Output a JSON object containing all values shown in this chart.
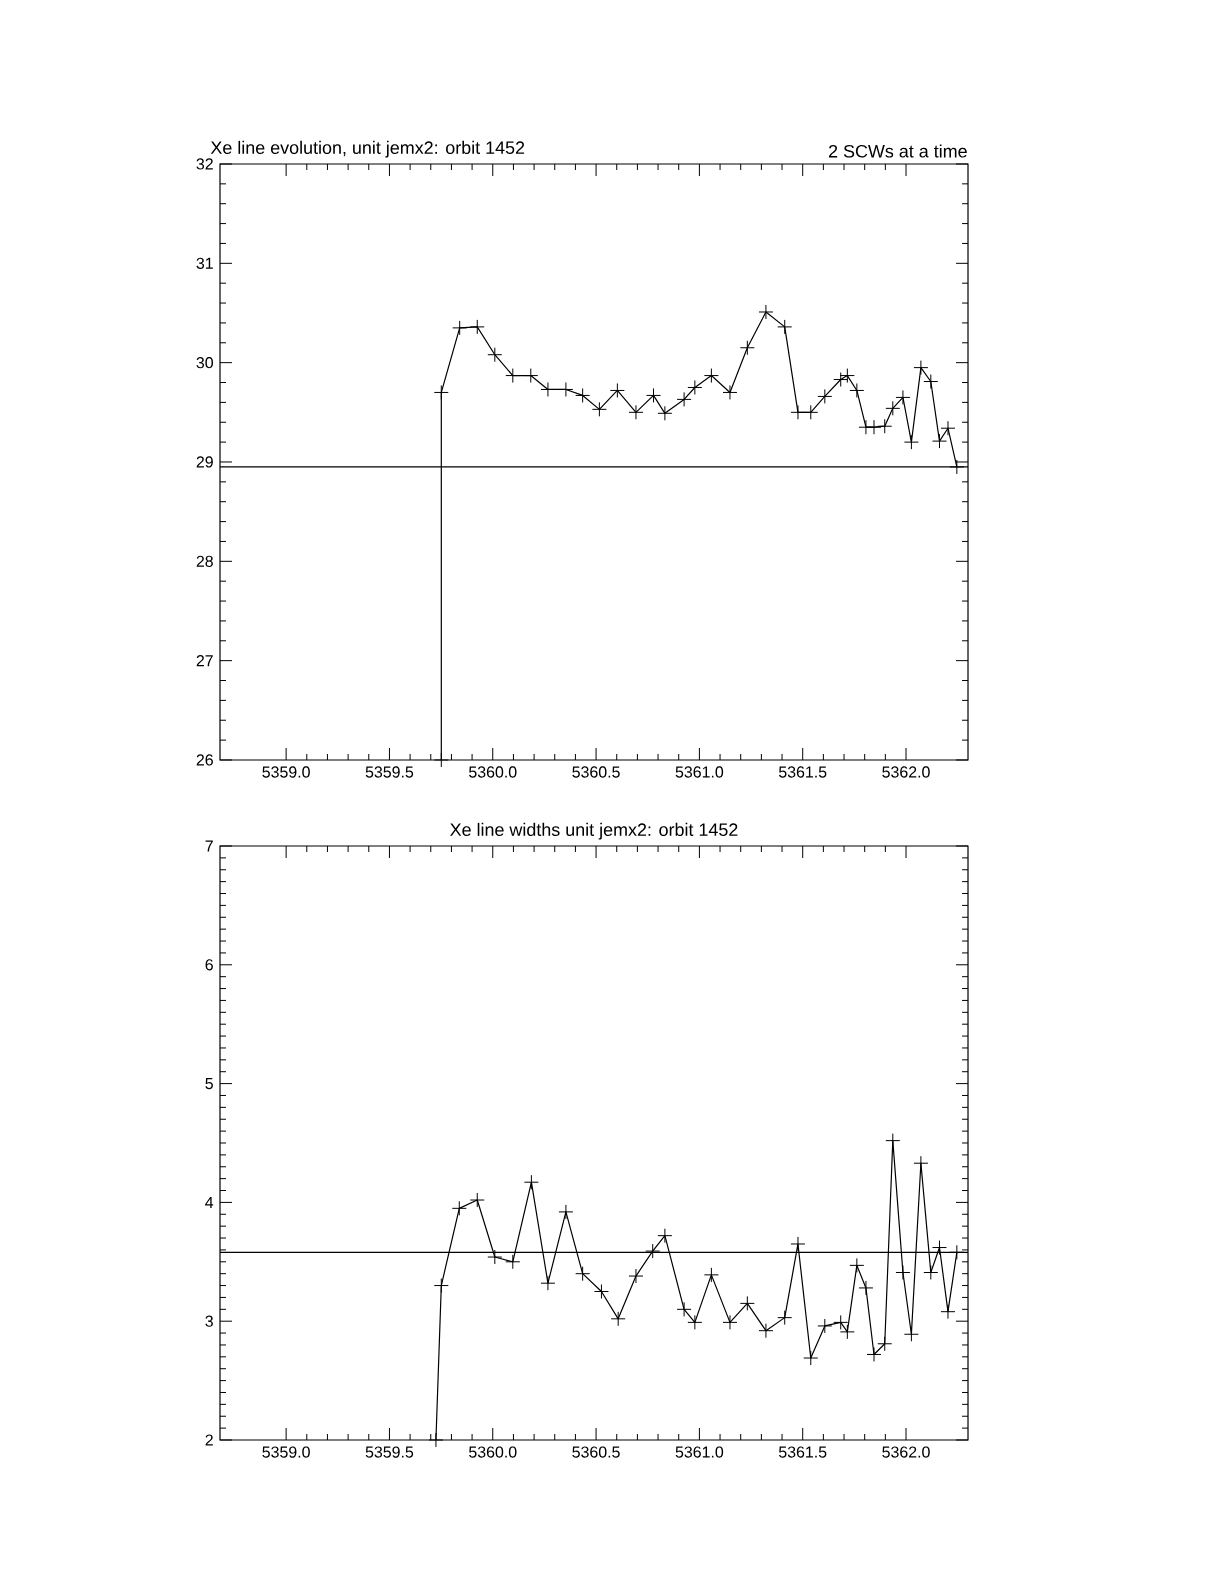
{
  "chart_data": [
    {
      "type": "line",
      "title": "Xe line evolution, unit jemx2: orbit 1452",
      "subtitle": "2 SCWs at a time",
      "x": [
        5359.751,
        5359.751,
        5359.84,
        5359.925,
        5360.01,
        5360.097,
        5360.184,
        5360.267,
        5360.354,
        5360.435,
        5360.516,
        5360.603,
        5360.693,
        5360.778,
        5360.833,
        5360.926,
        5360.978,
        5361.058,
        5361.148,
        5361.232,
        5361.322,
        5361.413,
        5361.477,
        5361.539,
        5361.607,
        5361.684,
        5361.716,
        5361.762,
        5361.806,
        5361.845,
        5361.897,
        5361.936,
        5361.985,
        5362.026,
        5362.072,
        5362.12,
        5362.162,
        5362.203,
        5362.246
      ],
      "series": [
        {
          "color": "#000000",
          "values": [
            26,
            29.7,
            30.35,
            30.36,
            30.08,
            29.87,
            29.87,
            29.73,
            29.73,
            29.67,
            29.53,
            29.72,
            29.5,
            29.67,
            29.49,
            29.63,
            29.75,
            29.87,
            29.7,
            30.15,
            30.51,
            30.36,
            29.5,
            29.5,
            29.66,
            29.83,
            29.87,
            29.72,
            29.35,
            29.35,
            29.36,
            29.54,
            29.65,
            29.2,
            29.95,
            29.81,
            29.21,
            29.34,
            28.95
          ]
        }
      ],
      "xlim": [
        5358.68,
        5362.3
      ],
      "ylim": [
        26,
        32
      ],
      "xticks": [
        {
          "value": 5359,
          "label": "5359.0"
        },
        {
          "value": 5359.5,
          "label": "5359.5"
        },
        {
          "value": 5360,
          "label": "5360.0"
        },
        {
          "value": 5360.5,
          "label": "5360.5"
        },
        {
          "value": 5361,
          "label": "5361.0"
        },
        {
          "value": 5361.5,
          "label": "5361.5"
        },
        {
          "value": 5362,
          "label": "5362.0"
        }
      ],
      "yticks": [
        26,
        27,
        28,
        29,
        30,
        31,
        32
      ],
      "ref_lines": [
        {
          "axis": "y",
          "value": 28.95
        }
      ],
      "marker": "cross"
    },
    {
      "type": "line",
      "title": "Xe line widths unit jemx2: orbit 1452",
      "x": [
        5359.725,
        5359.751,
        5359.838,
        5359.925,
        5360.01,
        5360.097,
        5360.187,
        5360.267,
        5360.354,
        5360.435,
        5360.526,
        5360.607,
        5360.693,
        5360.774,
        5360.833,
        5360.926,
        5360.978,
        5361.058,
        5361.148,
        5361.232,
        5361.322,
        5361.413,
        5361.477,
        5361.539,
        5361.607,
        5361.684,
        5361.716,
        5361.762,
        5361.806,
        5361.845,
        5361.897,
        5361.936,
        5361.985,
        5362.026,
        5362.072,
        5362.12,
        5362.162,
        5362.203,
        5362.246
      ],
      "series": [
        {
          "color": "#000000",
          "values": [
            2,
            3.3,
            3.95,
            4.02,
            3.54,
            3.5,
            4.17,
            3.32,
            3.92,
            3.4,
            3.25,
            3.02,
            3.38,
            3.59,
            3.72,
            3.1,
            2.99,
            3.39,
            2.99,
            3.15,
            2.92,
            3.03,
            3.65,
            2.69,
            2.96,
            2.99,
            2.91,
            3.47,
            3.28,
            2.72,
            2.81,
            4.52,
            3.41,
            2.89,
            4.33,
            3.41,
            3.62,
            3.08,
            3.58
          ]
        }
      ],
      "xlim": [
        5358.68,
        5362.3
      ],
      "ylim": [
        2,
        7
      ],
      "xticks": [
        {
          "value": 5359,
          "label": "5359.0"
        },
        {
          "value": 5359.5,
          "label": "5359.5"
        },
        {
          "value": 5360,
          "label": "5360.0"
        },
        {
          "value": 5360.5,
          "label": "5360.5"
        },
        {
          "value": 5361,
          "label": "5361.0"
        },
        {
          "value": 5361.5,
          "label": "5361.5"
        },
        {
          "value": 5362,
          "label": "5362.0"
        }
      ],
      "yticks": [
        2,
        3,
        4,
        5,
        6,
        7
      ],
      "ref_lines": [
        {
          "axis": "y",
          "value": 3.58
        }
      ],
      "marker": "cross"
    }
  ]
}
